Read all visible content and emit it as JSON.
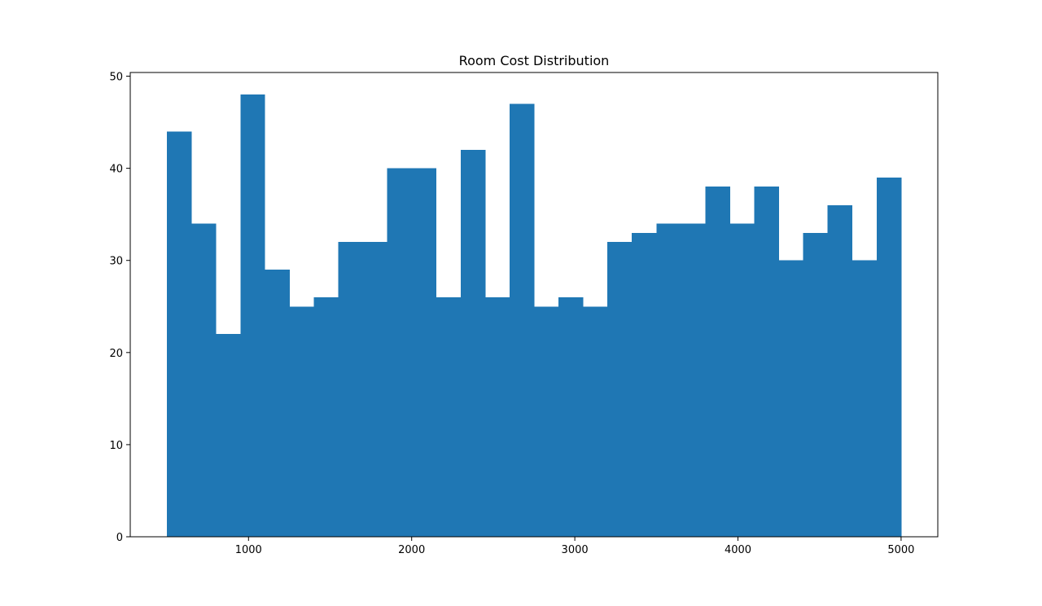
{
  "colors": {
    "bar": "#1f77b4",
    "axis": "#000000",
    "background": "#ffffff"
  },
  "chart_data": {
    "type": "bar",
    "subtype": "histogram",
    "title": "Room Cost Distribution",
    "xlabel": "",
    "ylabel": "",
    "xlim": [
      275,
      5225
    ],
    "ylim": [
      0,
      50.4
    ],
    "grid": false,
    "x_ticks": [
      1000,
      2000,
      3000,
      4000,
      5000
    ],
    "y_ticks": [
      0,
      10,
      20,
      30,
      40,
      50
    ],
    "bin_edges": [
      500,
      650,
      800,
      950,
      1100,
      1250,
      1400,
      1550,
      1700,
      1850,
      2000,
      2150,
      2300,
      2450,
      2600,
      2750,
      2900,
      3050,
      3200,
      3350,
      3500,
      3650,
      3800,
      3950,
      4100,
      4250,
      4400,
      4550,
      4700,
      4850,
      5000
    ],
    "values": [
      44,
      34,
      22,
      48,
      29,
      25,
      26,
      32,
      32,
      40,
      40,
      26,
      42,
      26,
      47,
      25,
      26,
      25,
      32,
      33,
      34,
      34,
      38,
      34,
      38,
      30,
      33,
      36,
      30,
      39
    ]
  }
}
